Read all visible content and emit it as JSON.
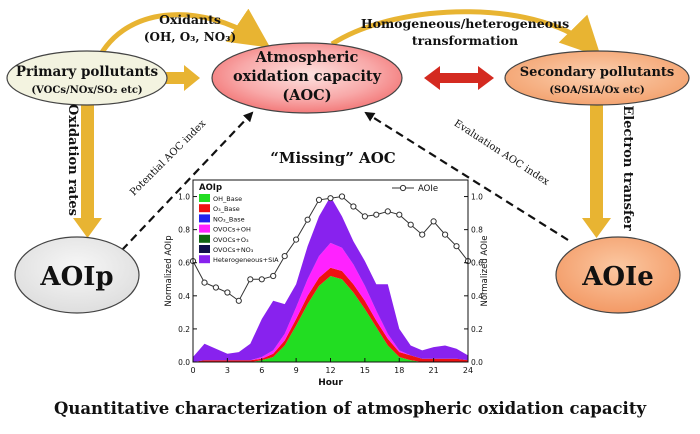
{
  "diagram": {
    "primary": {
      "line1": "Primary pollutants",
      "line2": "(VOCs/NOx/SO₂ etc)"
    },
    "aoc": {
      "line1": "Atmospheric",
      "line2": "oxidation capacity",
      "line3": "(AOC)"
    },
    "secondary": {
      "line1": "Secondary pollutants",
      "line2": "(SOA/SIA/Ox etc)"
    },
    "aoip": "AOIp",
    "aoie": "AOIe",
    "oxidants": {
      "line1": "Oxidants",
      "line2": "(OH, O₃, NO₃)"
    },
    "transformation": {
      "line1": "Homogeneous/heterogeneous",
      "line2": "transformation"
    },
    "oxidation_rates": "Oxidation rates",
    "electron_transfer": "Electron transfer",
    "potential_index": "Potential AOC index",
    "evaluation_index": "Evaluation AOC index",
    "missing": "“Missing” AOC",
    "bottom_title": "Quantitative characterization of atmospheric oxidation capacity"
  },
  "colors": {
    "arrow_gold": "#e8b432",
    "arrow_red": "#d42a20",
    "box_primary": "#f3f3e0",
    "box_aoc_inner": "#fde3e0",
    "box_aoc_outer": "#f26f6f",
    "box_secondary": "#f6aa7a",
    "box_aoip": "#ececec",
    "box_aoie": "#f6aa7a"
  },
  "chart_data": {
    "type": "area",
    "x": [
      0,
      1,
      2,
      3,
      4,
      5,
      6,
      7,
      8,
      9,
      10,
      11,
      12,
      13,
      14,
      15,
      16,
      17,
      18,
      19,
      20,
      21,
      22,
      23,
      24
    ],
    "xticks": [
      0,
      3,
      6,
      9,
      12,
      15,
      18,
      21,
      24
    ],
    "yticks_left": [
      "0.0",
      "0.2",
      "0.4",
      "0.6",
      "0.8",
      "1.0"
    ],
    "yticks_right": [
      "0.0",
      "0.2",
      "0.4",
      "0.6",
      "0.8",
      "1.0"
    ],
    "xlabel": "Hour",
    "ylabel_left": "Normalized AOIp",
    "ylabel_right": "Normalized AOIe",
    "ylim": [
      0,
      1.1
    ],
    "xlim": [
      0,
      24
    ],
    "legend_title": "AOIp",
    "series": [
      {
        "name": "OH_Base",
        "color": "#22dd22",
        "values": [
          0,
          0,
          0,
          0,
          0,
          0,
          0.01,
          0.03,
          0.1,
          0.22,
          0.35,
          0.46,
          0.52,
          0.5,
          0.42,
          0.32,
          0.21,
          0.1,
          0.03,
          0.01,
          0,
          0,
          0,
          0,
          0
        ]
      },
      {
        "name": "O₃_Base",
        "color": "#ee1111",
        "values": [
          0,
          0.01,
          0.01,
          0.01,
          0.01,
          0.01,
          0.01,
          0.02,
          0.03,
          0.04,
          0.05,
          0.05,
          0.05,
          0.05,
          0.05,
          0.05,
          0.04,
          0.04,
          0.03,
          0.03,
          0.02,
          0.02,
          0.02,
          0.02,
          0.01
        ]
      },
      {
        "name": "NO₃_Base",
        "color": "#2222ee",
        "values": [
          0,
          0,
          0,
          0,
          0,
          0,
          0,
          0,
          0,
          0,
          0,
          0,
          0,
          0,
          0,
          0,
          0,
          0,
          0,
          0,
          0,
          0,
          0,
          0,
          0
        ]
      },
      {
        "name": "OVOCs+OH",
        "color": "#ff22ff",
        "values": [
          0,
          0,
          0,
          0,
          0,
          0,
          0.01,
          0.02,
          0.04,
          0.07,
          0.1,
          0.13,
          0.15,
          0.14,
          0.12,
          0.09,
          0.06,
          0.03,
          0.01,
          0,
          0,
          0,
          0,
          0,
          0
        ]
      },
      {
        "name": "OVOCs+O₃",
        "color": "#116611",
        "values": [
          0,
          0,
          0,
          0,
          0,
          0,
          0,
          0,
          0,
          0,
          0,
          0,
          0,
          0,
          0,
          0,
          0,
          0,
          0,
          0,
          0,
          0,
          0,
          0,
          0
        ]
      },
      {
        "name": "OVOCs+NO₃",
        "color": "#11114a",
        "values": [
          0,
          0,
          0,
          0,
          0,
          0,
          0,
          0,
          0,
          0,
          0,
          0,
          0,
          0,
          0,
          0,
          0,
          0,
          0,
          0,
          0,
          0,
          0,
          0,
          0
        ]
      },
      {
        "name": "Heterogeneous+SIA",
        "color": "#8822ee",
        "values": [
          0.03,
          0.1,
          0.07,
          0.04,
          0.05,
          0.1,
          0.23,
          0.3,
          0.18,
          0.14,
          0.2,
          0.24,
          0.28,
          0.19,
          0.14,
          0.15,
          0.16,
          0.3,
          0.13,
          0.06,
          0.05,
          0.07,
          0.08,
          0.06,
          0.03
        ]
      }
    ],
    "line_series": {
      "name": "AOIe",
      "values": [
        0.61,
        0.48,
        0.45,
        0.42,
        0.37,
        0.5,
        0.5,
        0.52,
        0.64,
        0.74,
        0.86,
        0.98,
        0.99,
        1.0,
        0.94,
        0.88,
        0.89,
        0.91,
        0.89,
        0.83,
        0.77,
        0.85,
        0.77,
        0.7,
        0.61
      ]
    }
  }
}
